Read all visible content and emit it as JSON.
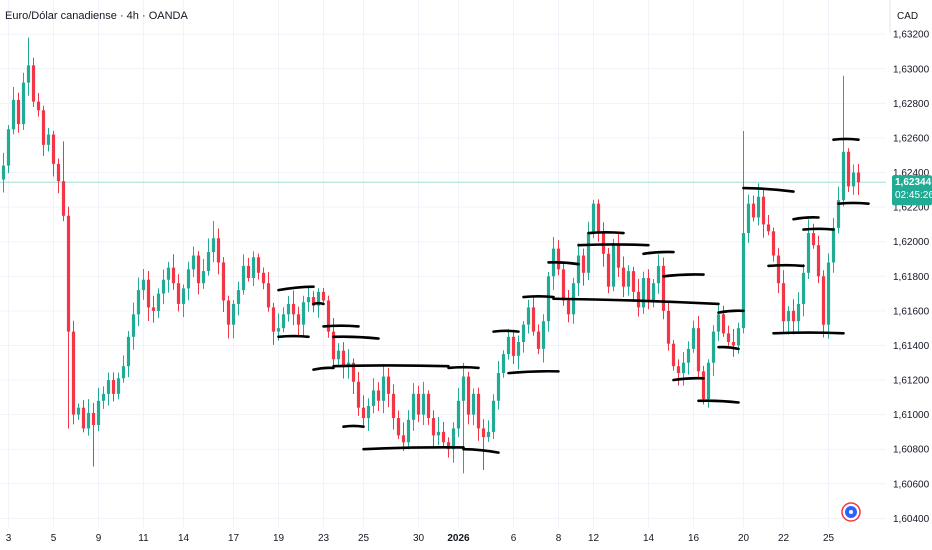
{
  "header": {
    "title": "Euro/Dólar canadiense · 4h · OANDA"
  },
  "price_axis": {
    "currency": "CAD"
  },
  "current_price": {
    "value": "1,62344",
    "countdown": "02:45:26"
  },
  "colors": {
    "up": "#22ab94",
    "down": "#f23645",
    "grid": "#f0f3fa",
    "text": "#131722",
    "drawing": "#000000",
    "price_tag": "#22ab94",
    "logo": "#2962ff"
  },
  "logo": {
    "icon": "tradingview-logo-icon"
  },
  "chart_data": {
    "type": "candlestick",
    "ylim": [
      1.6035,
      1.6334
    ],
    "y_ticks": [
      {
        "value": 1.632,
        "label": "1,63200"
      },
      {
        "value": 1.63,
        "label": "1,63000"
      },
      {
        "value": 1.628,
        "label": "1,62800"
      },
      {
        "value": 1.626,
        "label": "1,62600"
      },
      {
        "value": 1.624,
        "label": "1,62400"
      },
      {
        "value": 1.622,
        "label": "1,62200"
      },
      {
        "value": 1.62,
        "label": "1,62000"
      },
      {
        "value": 1.618,
        "label": "1,61800"
      },
      {
        "value": 1.616,
        "label": "1,61600"
      },
      {
        "value": 1.614,
        "label": "1,61400"
      },
      {
        "value": 1.612,
        "label": "1,61200"
      },
      {
        "value": 1.61,
        "label": "1,61000"
      },
      {
        "value": 1.608,
        "label": "1,60800"
      },
      {
        "value": 1.606,
        "label": "1,60600"
      },
      {
        "value": 1.604,
        "label": "1,60400"
      }
    ],
    "x_ticks": [
      {
        "idx": 1,
        "label": "3"
      },
      {
        "idx": 10,
        "label": "5"
      },
      {
        "idx": 19,
        "label": "9"
      },
      {
        "idx": 28,
        "label": "11"
      },
      {
        "idx": 36,
        "label": "14"
      },
      {
        "idx": 46,
        "label": "17"
      },
      {
        "idx": 55,
        "label": "19"
      },
      {
        "idx": 64,
        "label": "23"
      },
      {
        "idx": 72,
        "label": "25"
      },
      {
        "idx": 83,
        "label": "30"
      },
      {
        "idx": 91,
        "label": "2026",
        "bold": true
      },
      {
        "idx": 102,
        "label": "6"
      },
      {
        "idx": 111,
        "label": "8"
      },
      {
        "idx": 118,
        "label": "12"
      },
      {
        "idx": 129,
        "label": "14"
      },
      {
        "idx": 138,
        "label": "16"
      },
      {
        "idx": 148,
        "label": "20"
      },
      {
        "idx": 156,
        "label": "22"
      },
      {
        "idx": 165,
        "label": "25"
      }
    ],
    "anchors": [
      [
        0,
        1.6244
      ],
      [
        1,
        1.6265
      ],
      [
        2,
        1.6282
      ],
      [
        3,
        1.6268
      ],
      [
        4,
        1.6292
      ],
      [
        5,
        1.6302
      ],
      [
        6,
        1.6281
      ],
      [
        7,
        1.6276
      ],
      [
        8,
        1.6256
      ],
      [
        9,
        1.6262
      ],
      [
        10,
        1.6245
      ],
      [
        11,
        1.6235
      ],
      [
        12,
        1.6215
      ],
      [
        13,
        1.6148
      ],
      [
        14,
        1.61
      ],
      [
        15,
        1.6104
      ],
      [
        16,
        1.6092
      ],
      [
        17,
        1.6101
      ],
      [
        18,
        1.6094
      ],
      [
        19,
        1.6108
      ],
      [
        20,
        1.6112
      ],
      [
        21,
        1.612
      ],
      [
        22,
        1.6112
      ],
      [
        23,
        1.6121
      ],
      [
        24,
        1.6128
      ],
      [
        25,
        1.6145
      ],
      [
        26,
        1.6158
      ],
      [
        27,
        1.6172
      ],
      [
        28,
        1.6178
      ],
      [
        29,
        1.6162
      ],
      [
        30,
        1.616
      ],
      [
        31,
        1.617
      ],
      [
        32,
        1.6178
      ],
      [
        33,
        1.6185
      ],
      [
        34,
        1.6176
      ],
      [
        35,
        1.6164
      ],
      [
        36,
        1.6173
      ],
      [
        37,
        1.6184
      ],
      [
        38,
        1.6192
      ],
      [
        39,
        1.6176
      ],
      [
        40,
        1.6183
      ],
      [
        41,
        1.6194
      ],
      [
        42,
        1.6202
      ],
      [
        43,
        1.6188
      ],
      [
        44,
        1.6166
      ],
      [
        45,
        1.6152
      ],
      [
        46,
        1.6164
      ],
      [
        47,
        1.6172
      ],
      [
        48,
        1.6186
      ],
      [
        49,
        1.6179
      ],
      [
        50,
        1.6191
      ],
      [
        51,
        1.6182
      ],
      [
        52,
        1.6176
      ],
      [
        53,
        1.6162
      ],
      [
        54,
        1.6148
      ],
      [
        55,
        1.615
      ],
      [
        56,
        1.6158
      ],
      [
        57,
        1.6164
      ],
      [
        58,
        1.6158
      ],
      [
        59,
        1.6152
      ],
      [
        60,
        1.6165
      ],
      [
        61,
        1.6168
      ],
      [
        62,
        1.6163
      ],
      [
        63,
        1.6171
      ],
      [
        64,
        1.6166
      ],
      [
        65,
        1.6148
      ],
      [
        66,
        1.6132
      ],
      [
        67,
        1.6137
      ],
      [
        68,
        1.6128
      ],
      [
        69,
        1.613
      ],
      [
        70,
        1.6119
      ],
      [
        71,
        1.6104
      ],
      [
        72,
        1.6098
      ],
      [
        73,
        1.6105
      ],
      [
        74,
        1.6114
      ],
      [
        75,
        1.6108
      ],
      [
        76,
        1.6122
      ],
      [
        77,
        1.6112
      ],
      [
        78,
        1.6098
      ],
      [
        79,
        1.6088
      ],
      [
        80,
        1.6084
      ],
      [
        81,
        1.6097
      ],
      [
        82,
        1.6112
      ],
      [
        83,
        1.61
      ],
      [
        84,
        1.6112
      ],
      [
        85,
        1.6098
      ],
      [
        86,
        1.6088
      ],
      [
        87,
        1.609
      ],
      [
        88,
        1.6084
      ],
      [
        89,
        1.608
      ],
      [
        90,
        1.6092
      ],
      [
        91,
        1.6108
      ],
      [
        92,
        1.6122
      ],
      [
        93,
        1.61
      ],
      [
        94,
        1.6112
      ],
      [
        95,
        1.6092
      ],
      [
        96,
        1.6087
      ],
      [
        97,
        1.609
      ],
      [
        98,
        1.6108
      ],
      [
        99,
        1.6124
      ],
      [
        100,
        1.6135
      ],
      [
        101,
        1.6145
      ],
      [
        102,
        1.6134
      ],
      [
        103,
        1.6142
      ],
      [
        104,
        1.6152
      ],
      [
        105,
        1.6162
      ],
      [
        106,
        1.6148
      ],
      [
        107,
        1.6138
      ],
      [
        108,
        1.6154
      ],
      [
        109,
        1.618
      ],
      [
        110,
        1.6196
      ],
      [
        111,
        1.6184
      ],
      [
        112,
        1.6166
      ],
      [
        113,
        1.6158
      ],
      [
        114,
        1.6176
      ],
      [
        115,
        1.6192
      ],
      [
        116,
        1.6182
      ],
      [
        117,
        1.6205
      ],
      [
        118,
        1.6222
      ],
      [
        119,
        1.6206
      ],
      [
        120,
        1.6193
      ],
      [
        121,
        1.6174
      ],
      [
        122,
        1.6198
      ],
      [
        123,
        1.6185
      ],
      [
        124,
        1.6174
      ],
      [
        125,
        1.6183
      ],
      [
        126,
        1.6171
      ],
      [
        127,
        1.6162
      ],
      [
        128,
        1.6179
      ],
      [
        129,
        1.6166
      ],
      [
        130,
        1.6176
      ],
      [
        131,
        1.6186
      ],
      [
        132,
        1.616
      ],
      [
        133,
        1.6141
      ],
      [
        134,
        1.6128
      ],
      [
        135,
        1.6124
      ],
      [
        136,
        1.613
      ],
      [
        137,
        1.6138
      ],
      [
        138,
        1.615
      ],
      [
        139,
        1.6125
      ],
      [
        140,
        1.6109
      ],
      [
        141,
        1.613
      ],
      [
        142,
        1.6148
      ],
      [
        143,
        1.6158
      ],
      [
        144,
        1.6147
      ],
      [
        145,
        1.6142
      ],
      [
        146,
        1.614
      ],
      [
        147,
        1.615
      ],
      [
        148,
        1.6205
      ],
      [
        149,
        1.6222
      ],
      [
        150,
        1.6214
      ],
      [
        151,
        1.6226
      ],
      [
        152,
        1.621
      ],
      [
        153,
        1.6206
      ],
      [
        154,
        1.6192
      ],
      [
        155,
        1.6176
      ],
      [
        156,
        1.6154
      ],
      [
        157,
        1.616
      ],
      [
        158,
        1.6154
      ],
      [
        159,
        1.6164
      ],
      [
        160,
        1.6182
      ],
      [
        161,
        1.6205
      ],
      [
        162,
        1.6198
      ],
      [
        163,
        1.618
      ],
      [
        164,
        1.6152
      ],
      [
        165,
        1.6188
      ],
      [
        166,
        1.6208
      ],
      [
        167,
        1.6224
      ],
      [
        168,
        1.6252
      ],
      [
        169,
        1.6232
      ],
      [
        170,
        1.624
      ],
      [
        171,
        1.62344
      ]
    ],
    "spikes": [
      {
        "idx": 5,
        "high": 1.6318
      },
      {
        "idx": 12,
        "high": 1.6258
      },
      {
        "idx": 13,
        "low": 1.6092
      },
      {
        "idx": 18,
        "low": 1.607
      },
      {
        "idx": 42,
        "high": 1.6212
      },
      {
        "idx": 92,
        "low": 1.6066
      },
      {
        "idx": 96,
        "low": 1.6068
      },
      {
        "idx": 141,
        "low": 1.6104
      },
      {
        "idx": 148,
        "high": 1.6264
      },
      {
        "idx": 168,
        "high": 1.6296
      },
      {
        "idx": 165,
        "low": 1.6144
      }
    ],
    "drawings": [
      {
        "from": [
          55,
          1.6172
        ],
        "to": [
          62,
          1.6174
        ]
      },
      {
        "from": [
          55,
          1.6145
        ],
        "to": [
          61,
          1.6145
        ]
      },
      {
        "from": [
          62,
          1.6164
        ],
        "to": [
          64,
          1.6164
        ]
      },
      {
        "from": [
          64,
          1.6151
        ],
        "to": [
          71,
          1.6151
        ]
      },
      {
        "from": [
          66,
          1.6145
        ],
        "to": [
          75,
          1.6144
        ]
      },
      {
        "from": [
          62,
          1.6126
        ],
        "to": [
          66,
          1.6127
        ]
      },
      {
        "from": [
          66,
          1.6128
        ],
        "to": [
          89,
          1.6128
        ]
      },
      {
        "from": [
          68,
          1.6093
        ],
        "to": [
          72,
          1.6093
        ]
      },
      {
        "from": [
          72,
          1.608
        ],
        "to": [
          92,
          1.6081
        ]
      },
      {
        "from": [
          92,
          1.608
        ],
        "to": [
          99,
          1.6078
        ]
      },
      {
        "from": [
          89,
          1.6127
        ],
        "to": [
          95,
          1.6127
        ]
      },
      {
        "from": [
          98,
          1.6148
        ],
        "to": [
          103,
          1.6148
        ]
      },
      {
        "from": [
          101,
          1.6124
        ],
        "to": [
          111,
          1.6125
        ]
      },
      {
        "from": [
          104,
          1.6168
        ],
        "to": [
          110,
          1.6168
        ]
      },
      {
        "from": [
          109,
          1.6188
        ],
        "to": [
          115,
          1.6187
        ]
      },
      {
        "from": [
          110,
          1.6167
        ],
        "to": [
          143,
          1.6164
        ]
      },
      {
        "from": [
          117,
          1.6205
        ],
        "to": [
          124,
          1.6205
        ]
      },
      {
        "from": [
          115,
          1.6198
        ],
        "to": [
          129,
          1.6198
        ]
      },
      {
        "from": [
          128,
          1.6193
        ],
        "to": [
          134,
          1.6194
        ]
      },
      {
        "from": [
          132,
          1.618
        ],
        "to": [
          140,
          1.6181
        ]
      },
      {
        "from": [
          134,
          1.612
        ],
        "to": [
          140,
          1.6121
        ]
      },
      {
        "from": [
          139,
          1.6108
        ],
        "to": [
          147,
          1.6107
        ]
      },
      {
        "from": [
          143,
          1.6139
        ],
        "to": [
          147,
          1.6138
        ]
      },
      {
        "from": [
          143,
          1.6159
        ],
        "to": [
          148,
          1.616
        ]
      },
      {
        "from": [
          148,
          1.6231
        ],
        "to": [
          158,
          1.6229
        ]
      },
      {
        "from": [
          153,
          1.6186
        ],
        "to": [
          160,
          1.6186
        ]
      },
      {
        "from": [
          158,
          1.6213
        ],
        "to": [
          163,
          1.6214
        ]
      },
      {
        "from": [
          160,
          1.6207
        ],
        "to": [
          166,
          1.6207
        ]
      },
      {
        "from": [
          154,
          1.6147
        ],
        "to": [
          168,
          1.6147
        ]
      },
      {
        "from": [
          166,
          1.6259
        ],
        "to": [
          171,
          1.6259
        ]
      },
      {
        "from": [
          167,
          1.6222
        ],
        "to": [
          173,
          1.6222
        ]
      }
    ]
  }
}
